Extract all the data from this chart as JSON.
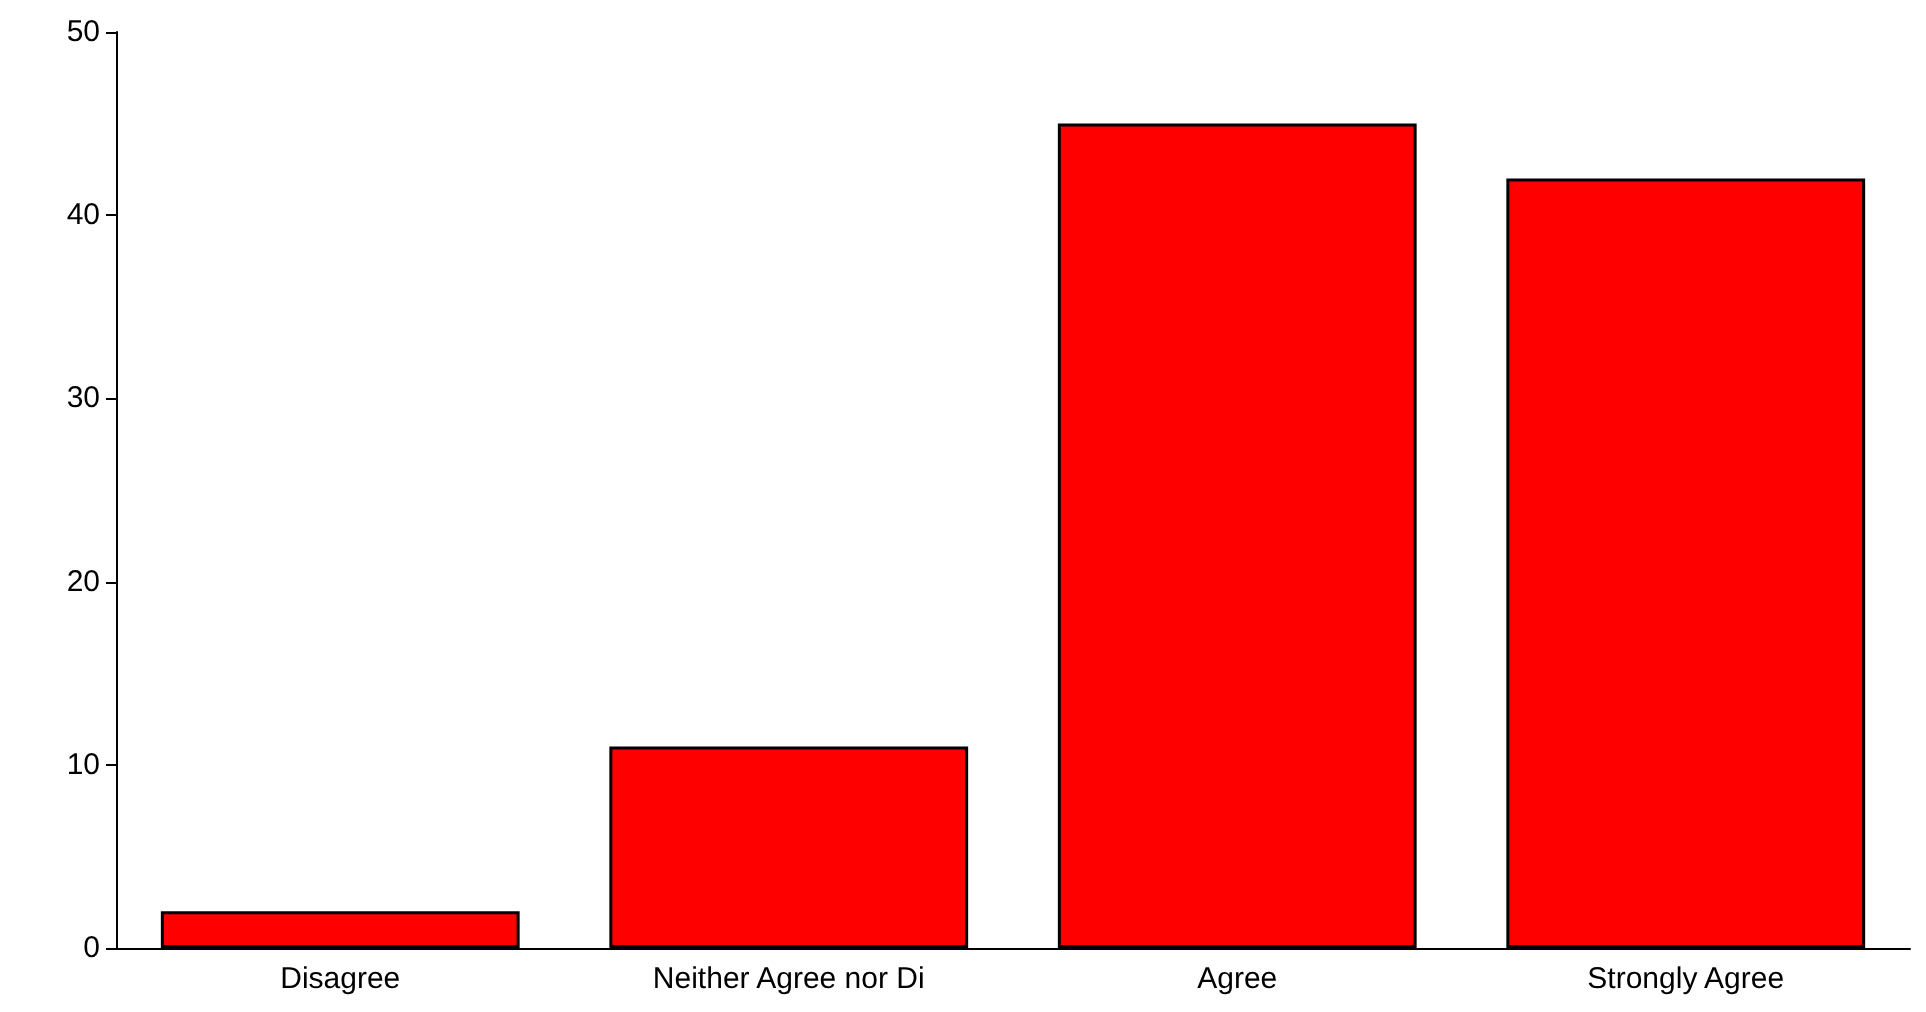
{
  "chart_data": {
    "type": "bar",
    "categories": [
      "Disagree",
      "Neither Agree nor Di",
      "Agree",
      "Strongly Agree"
    ],
    "values": [
      2,
      11,
      45,
      42
    ],
    "color": "#ff0000",
    "ylim": [
      0,
      50
    ],
    "yticks": [
      0,
      10,
      20,
      30,
      40,
      50
    ],
    "grid": false
  }
}
